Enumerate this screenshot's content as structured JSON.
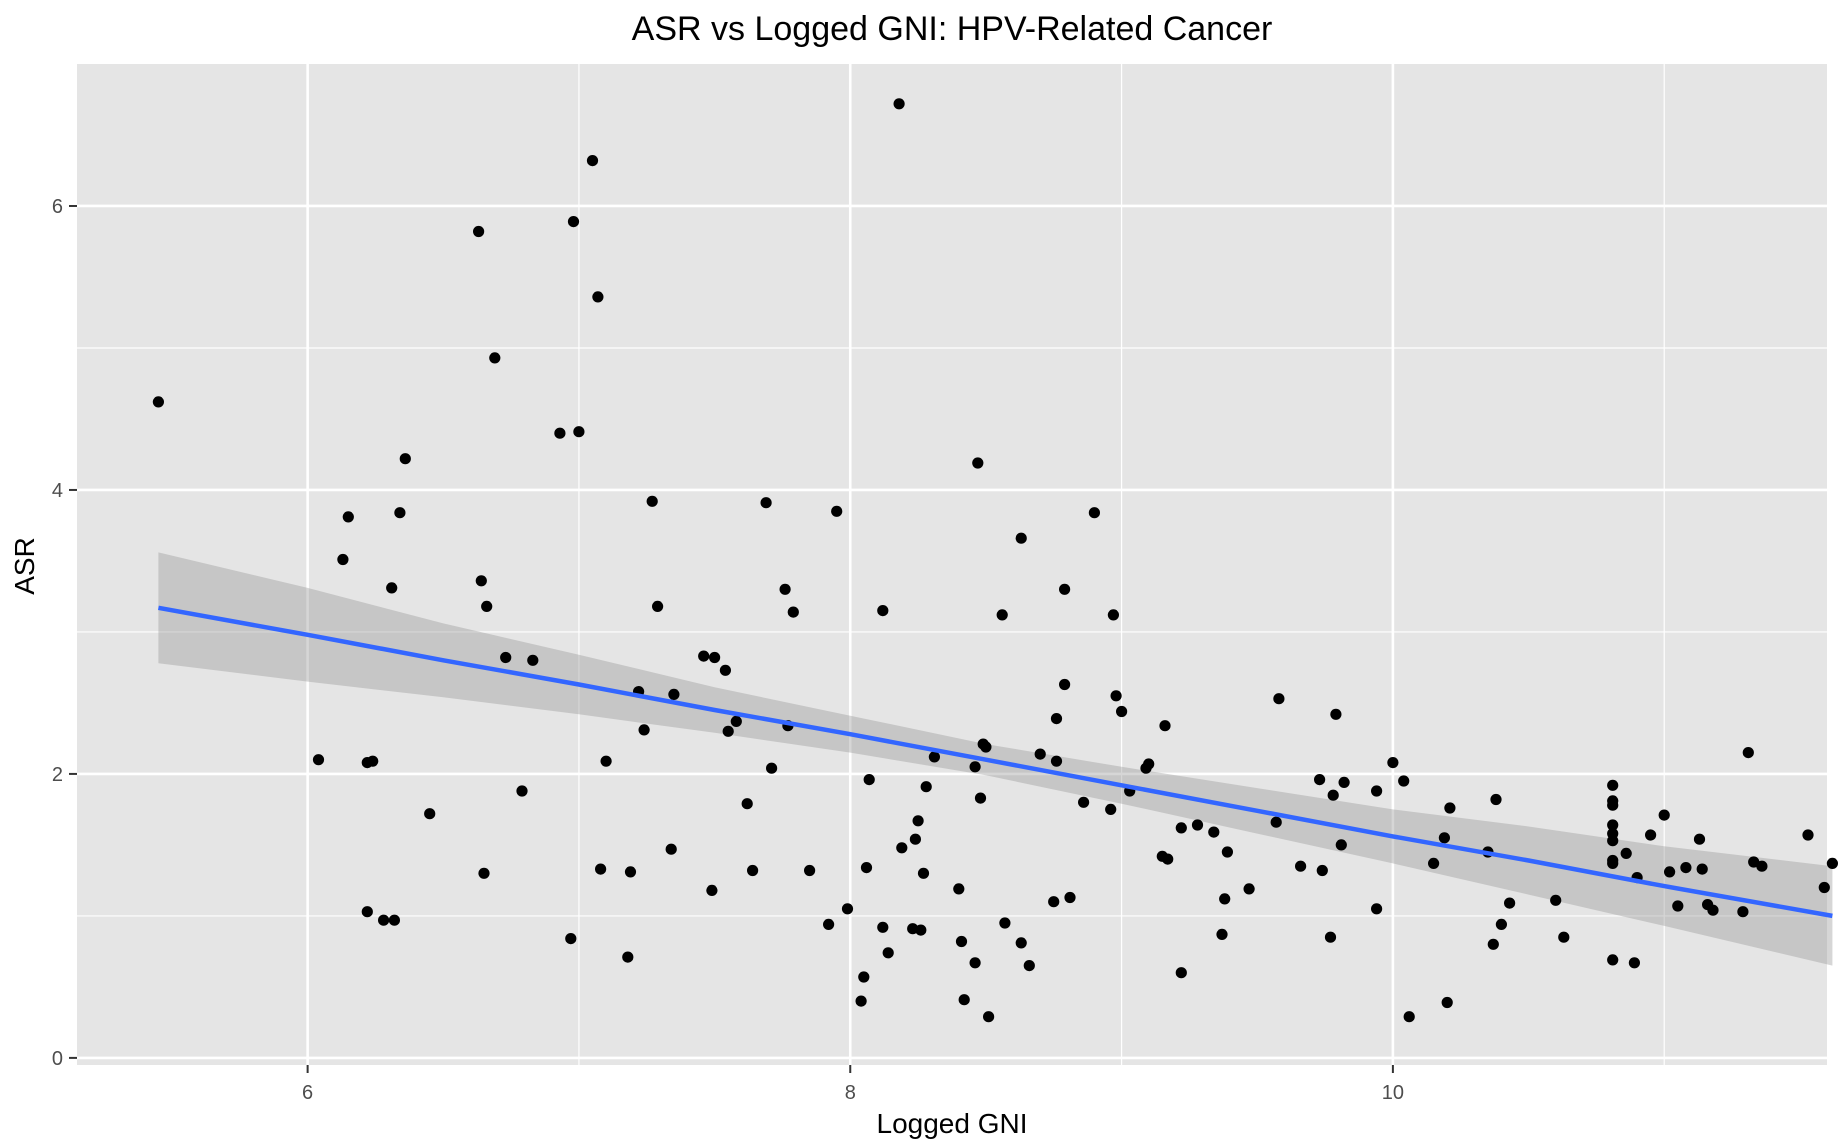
{
  "chart_data": {
    "type": "scatter",
    "title": "ASR vs Logged GNI: HPV-Related Cancer",
    "xlabel": "Logged GNI",
    "ylabel": "ASR",
    "xlim": [
      5.15,
      11.6
    ],
    "ylim": [
      -0.05,
      7.0
    ],
    "xticks": [
      6,
      8,
      10
    ],
    "yticks": [
      0,
      2,
      4,
      6
    ],
    "xticks_minor": [
      7,
      9,
      11
    ],
    "yticks_minor": [
      1,
      3,
      5
    ],
    "grid": true,
    "colors": {
      "panel": "#e5e5e5",
      "grid": "#ffffff",
      "point": "#000000",
      "fit_line": "#3366ff",
      "ribbon": "#999999"
    },
    "points": [
      [
        5.45,
        4.62
      ],
      [
        6.04,
        2.1
      ],
      [
        6.13,
        3.51
      ],
      [
        6.15,
        3.81
      ],
      [
        6.22,
        1.03
      ],
      [
        6.22,
        2.08
      ],
      [
        6.24,
        2.09
      ],
      [
        6.28,
        0.97
      ],
      [
        6.31,
        3.31
      ],
      [
        6.32,
        0.97
      ],
      [
        6.34,
        3.84
      ],
      [
        6.36,
        4.22
      ],
      [
        6.45,
        1.72
      ],
      [
        6.63,
        5.82
      ],
      [
        6.64,
        3.36
      ],
      [
        6.65,
        1.3
      ],
      [
        6.66,
        3.18
      ],
      [
        6.69,
        4.93
      ],
      [
        6.73,
        2.82
      ],
      [
        6.79,
        1.88
      ],
      [
        6.83,
        2.8
      ],
      [
        6.93,
        4.4
      ],
      [
        6.97,
        0.84
      ],
      [
        6.98,
        5.89
      ],
      [
        7.0,
        4.41
      ],
      [
        7.05,
        6.32
      ],
      [
        7.07,
        5.36
      ],
      [
        7.08,
        1.33
      ],
      [
        7.1,
        2.09
      ],
      [
        7.18,
        0.71
      ],
      [
        7.19,
        1.31
      ],
      [
        7.22,
        2.58
      ],
      [
        7.24,
        2.31
      ],
      [
        7.27,
        3.92
      ],
      [
        7.29,
        3.18
      ],
      [
        7.34,
        1.47
      ],
      [
        7.35,
        2.56
      ],
      [
        7.46,
        2.83
      ],
      [
        7.49,
        1.18
      ],
      [
        7.5,
        2.82
      ],
      [
        7.54,
        2.73
      ],
      [
        7.55,
        2.3
      ],
      [
        7.58,
        2.37
      ],
      [
        7.62,
        1.79
      ],
      [
        7.64,
        1.32
      ],
      [
        7.69,
        3.91
      ],
      [
        7.71,
        2.04
      ],
      [
        7.76,
        3.3
      ],
      [
        7.77,
        2.34
      ],
      [
        7.79,
        3.14
      ],
      [
        7.85,
        1.32
      ],
      [
        7.92,
        0.94
      ],
      [
        7.95,
        3.85
      ],
      [
        7.99,
        1.05
      ],
      [
        8.04,
        0.4
      ],
      [
        8.05,
        0.57
      ],
      [
        8.06,
        1.34
      ],
      [
        8.07,
        1.96
      ],
      [
        8.12,
        0.92
      ],
      [
        8.12,
        3.15
      ],
      [
        8.14,
        0.74
      ],
      [
        8.18,
        6.72
      ],
      [
        8.19,
        1.48
      ],
      [
        8.23,
        0.91
      ],
      [
        8.24,
        1.54
      ],
      [
        8.25,
        1.67
      ],
      [
        8.26,
        0.9
      ],
      [
        8.27,
        1.3
      ],
      [
        8.28,
        1.91
      ],
      [
        8.31,
        2.12
      ],
      [
        8.4,
        1.19
      ],
      [
        8.41,
        0.82
      ],
      [
        8.42,
        0.41
      ],
      [
        8.46,
        0.67
      ],
      [
        8.46,
        2.05
      ],
      [
        8.47,
        4.19
      ],
      [
        8.48,
        1.83
      ],
      [
        8.49,
        2.21
      ],
      [
        8.5,
        2.19
      ],
      [
        8.51,
        0.29
      ],
      [
        8.56,
        3.12
      ],
      [
        8.57,
        0.95
      ],
      [
        8.63,
        3.66
      ],
      [
        8.63,
        0.81
      ],
      [
        8.66,
        0.65
      ],
      [
        8.7,
        2.14
      ],
      [
        8.75,
        1.1
      ],
      [
        8.76,
        2.09
      ],
      [
        8.76,
        2.39
      ],
      [
        8.79,
        3.3
      ],
      [
        8.79,
        2.63
      ],
      [
        8.81,
        1.13
      ],
      [
        8.86,
        1.8
      ],
      [
        8.9,
        3.84
      ],
      [
        8.96,
        1.75
      ],
      [
        8.97,
        3.12
      ],
      [
        8.98,
        2.55
      ],
      [
        9.0,
        2.44
      ],
      [
        9.03,
        1.88
      ],
      [
        9.09,
        2.04
      ],
      [
        9.1,
        2.07
      ],
      [
        9.15,
        1.42
      ],
      [
        9.16,
        2.34
      ],
      [
        9.17,
        1.4
      ],
      [
        9.22,
        0.6
      ],
      [
        9.22,
        1.62
      ],
      [
        9.28,
        1.64
      ],
      [
        9.34,
        1.59
      ],
      [
        9.37,
        0.87
      ],
      [
        9.38,
        1.12
      ],
      [
        9.39,
        1.45
      ],
      [
        9.47,
        1.19
      ],
      [
        9.57,
        1.66
      ],
      [
        9.58,
        2.53
      ],
      [
        9.66,
        1.35
      ],
      [
        9.73,
        1.96
      ],
      [
        9.74,
        1.32
      ],
      [
        9.77,
        0.85
      ],
      [
        9.78,
        1.85
      ],
      [
        9.79,
        2.42
      ],
      [
        9.81,
        1.5
      ],
      [
        9.82,
        1.94
      ],
      [
        9.94,
        1.88
      ],
      [
        9.94,
        1.05
      ],
      [
        10.0,
        2.08
      ],
      [
        10.04,
        1.95
      ],
      [
        10.06,
        0.29
      ],
      [
        10.15,
        1.37
      ],
      [
        10.19,
        1.55
      ],
      [
        10.2,
        0.39
      ],
      [
        10.21,
        1.76
      ],
      [
        10.35,
        1.45
      ],
      [
        10.37,
        0.8
      ],
      [
        10.38,
        1.82
      ],
      [
        10.4,
        0.94
      ],
      [
        10.43,
        1.09
      ],
      [
        10.6,
        1.11
      ],
      [
        10.63,
        0.85
      ],
      [
        10.81,
        1.92
      ],
      [
        10.81,
        1.81
      ],
      [
        10.81,
        1.78
      ],
      [
        10.81,
        1.64
      ],
      [
        10.81,
        1.58
      ],
      [
        10.81,
        1.53
      ],
      [
        10.81,
        1.39
      ],
      [
        10.81,
        1.37
      ],
      [
        10.81,
        0.69
      ],
      [
        10.86,
        1.44
      ],
      [
        10.89,
        0.67
      ],
      [
        10.9,
        1.27
      ],
      [
        10.95,
        1.57
      ],
      [
        11.0,
        1.71
      ],
      [
        11.02,
        1.31
      ],
      [
        11.05,
        1.07
      ],
      [
        11.08,
        1.34
      ],
      [
        11.13,
        1.54
      ],
      [
        11.14,
        1.33
      ],
      [
        11.16,
        1.08
      ],
      [
        11.18,
        1.04
      ],
      [
        11.29,
        1.03
      ],
      [
        11.31,
        2.15
      ],
      [
        11.33,
        1.38
      ],
      [
        11.36,
        1.35
      ],
      [
        11.53,
        1.57
      ],
      [
        11.59,
        1.2
      ],
      [
        11.62,
        1.37
      ]
    ],
    "fit": {
      "x": [
        5.45,
        6.0,
        6.5,
        7.0,
        7.5,
        8.0,
        8.5,
        9.0,
        9.5,
        10.0,
        10.5,
        11.0,
        11.62
      ],
      "y": [
        3.17,
        2.98,
        2.8,
        2.63,
        2.45,
        2.28,
        2.1,
        1.92,
        1.74,
        1.56,
        1.39,
        1.21,
        1.0
      ],
      "lower": [
        2.78,
        2.65,
        2.54,
        2.42,
        2.29,
        2.15,
        1.99,
        1.79,
        1.58,
        1.37,
        1.15,
        0.93,
        0.65
      ],
      "upper": [
        3.56,
        3.31,
        3.06,
        2.84,
        2.61,
        2.41,
        2.21,
        2.05,
        1.9,
        1.75,
        1.63,
        1.49,
        1.35
      ]
    }
  }
}
